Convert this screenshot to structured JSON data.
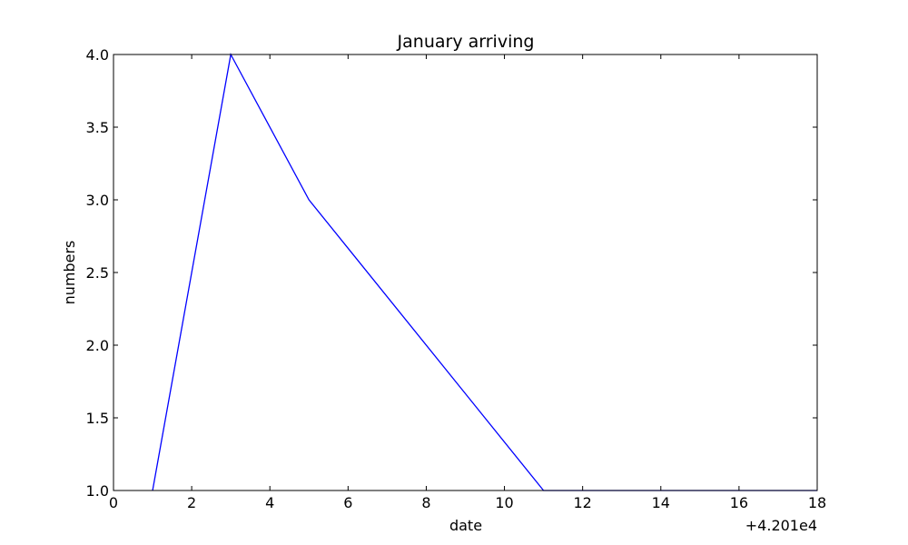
{
  "chart_data": {
    "type": "line",
    "title": "January arriving",
    "xlabel": "date",
    "ylabel": "numbers",
    "x_offset_label": "+4.201e4",
    "xlim": [
      0,
      18
    ],
    "ylim": [
      1.0,
      4.0
    ],
    "xticks": [
      "0",
      "2",
      "4",
      "6",
      "8",
      "10",
      "12",
      "14",
      "16",
      "18"
    ],
    "yticks": [
      "1.0",
      "1.5",
      "2.0",
      "2.5",
      "3.0",
      "3.5",
      "4.0"
    ],
    "grid": false,
    "series": [
      {
        "color": "#0000ff",
        "x": [
          42011,
          42013,
          42015,
          42021,
          42028
        ],
        "y": [
          1,
          4,
          3,
          1,
          1
        ]
      }
    ]
  }
}
